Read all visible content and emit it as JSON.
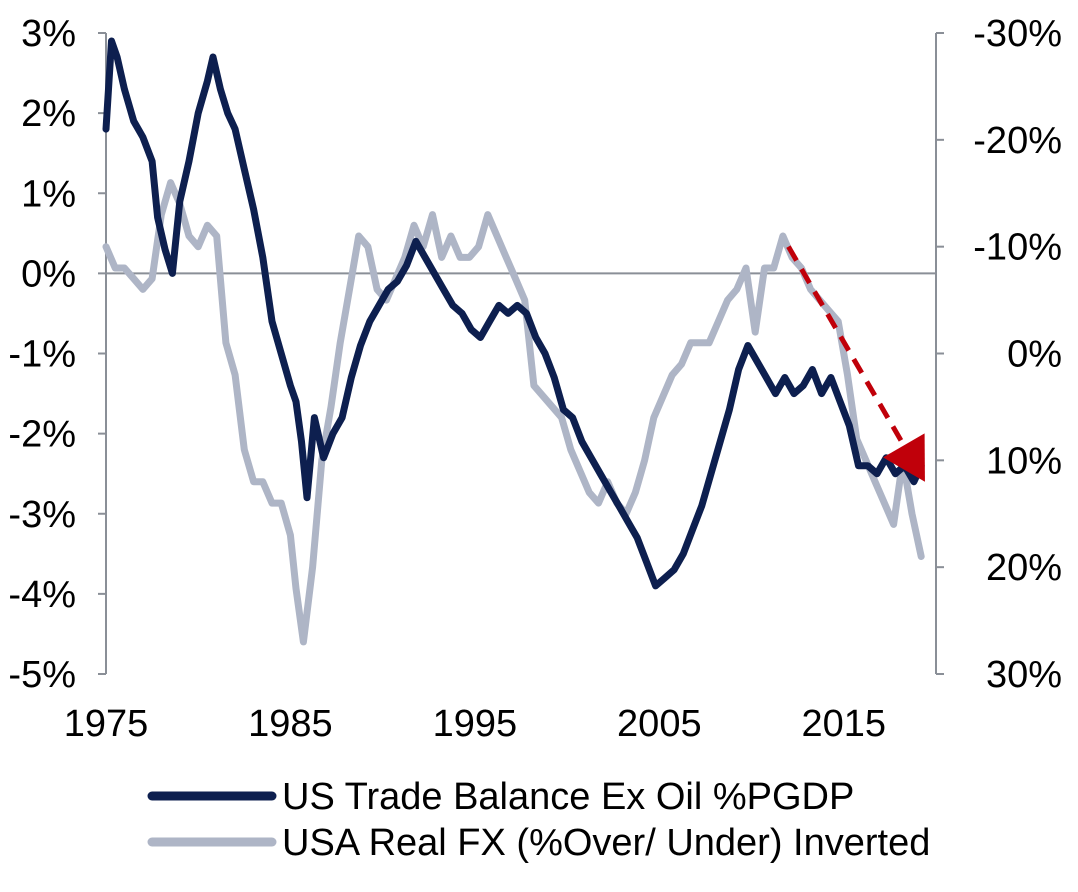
{
  "chart_data": {
    "type": "line",
    "title": "",
    "xlabel": "",
    "ylabel": "",
    "x_ticks": [
      "1975",
      "1985",
      "1995",
      "2005",
      "2015"
    ],
    "x_tick_values": [
      1975,
      1985,
      1995,
      2005,
      2015
    ],
    "xlim": [
      1975,
      2020
    ],
    "ylim_left": [
      -5,
      3
    ],
    "ylim_right": [
      30,
      -30
    ],
    "left_ticks": [
      {
        "value": 3,
        "label": "3%"
      },
      {
        "value": 2,
        "label": "2%"
      },
      {
        "value": 1,
        "label": "1%"
      },
      {
        "value": 0,
        "label": "0%"
      },
      {
        "value": -1,
        "label": "-1%"
      },
      {
        "value": -2,
        "label": "-2%"
      },
      {
        "value": -3,
        "label": "-3%"
      },
      {
        "value": -4,
        "label": "-4%"
      },
      {
        "value": -5,
        "label": "-5%"
      }
    ],
    "right_ticks": [
      {
        "value": -30,
        "label": "-30%"
      },
      {
        "value": -20,
        "label": "-20%"
      },
      {
        "value": -10,
        "label": "-10%"
      },
      {
        "value": 0,
        "label": "0%"
      },
      {
        "value": 10,
        "label": "10%"
      },
      {
        "value": 20,
        "label": "20%"
      },
      {
        "value": 30,
        "label": "30%"
      }
    ],
    "grid": false,
    "legend_position": "bottom",
    "series": [
      {
        "name": "US Trade Balance Ex Oil %PGDP",
        "axis": "left",
        "color": "#0d1f4f",
        "x": [
          1975.0,
          1975.3,
          1975.6,
          1976.0,
          1976.5,
          1977.0,
          1977.5,
          1977.8,
          1978.2,
          1978.6,
          1979.0,
          1979.5,
          1980.0,
          1980.5,
          1980.8,
          1981.2,
          1981.6,
          1982.0,
          1982.5,
          1983.0,
          1983.5,
          1984.0,
          1984.5,
          1985.0,
          1985.3,
          1985.6,
          1985.9,
          1986.3,
          1986.8,
          1987.3,
          1987.8,
          1988.3,
          1988.8,
          1989.3,
          1989.8,
          1990.3,
          1990.8,
          1991.3,
          1991.8,
          1992.3,
          1992.8,
          1993.3,
          1993.8,
          1994.3,
          1994.8,
          1995.3,
          1995.8,
          1996.3,
          1996.8,
          1997.3,
          1997.8,
          1998.3,
          1998.8,
          1999.3,
          1999.8,
          2000.3,
          2000.8,
          2001.3,
          2001.8,
          2002.3,
          2002.8,
          2003.3,
          2003.8,
          2004.3,
          2004.8,
          2005.3,
          2005.8,
          2006.3,
          2006.8,
          2007.3,
          2007.8,
          2008.3,
          2008.8,
          2009.3,
          2009.8,
          2010.3,
          2010.8,
          2011.3,
          2011.8,
          2012.3,
          2012.8,
          2013.3,
          2013.8,
          2014.3,
          2014.8,
          2015.3,
          2015.8,
          2016.3,
          2016.8,
          2017.3,
          2017.8,
          2018.3,
          2018.8,
          2019.2
        ],
        "values": [
          1.8,
          2.9,
          2.7,
          2.3,
          1.9,
          1.7,
          1.4,
          0.7,
          0.3,
          0.0,
          0.9,
          1.4,
          2.0,
          2.4,
          2.7,
          2.3,
          2.0,
          1.8,
          1.3,
          0.8,
          0.2,
          -0.6,
          -1.0,
          -1.4,
          -1.6,
          -2.1,
          -2.8,
          -1.8,
          -2.3,
          -2.0,
          -1.8,
          -1.3,
          -0.9,
          -0.6,
          -0.4,
          -0.2,
          -0.1,
          0.1,
          0.4,
          0.2,
          0.0,
          -0.2,
          -0.4,
          -0.5,
          -0.7,
          -0.8,
          -0.6,
          -0.4,
          -0.5,
          -0.4,
          -0.5,
          -0.8,
          -1.0,
          -1.3,
          -1.7,
          -1.8,
          -2.1,
          -2.3,
          -2.5,
          -2.7,
          -2.9,
          -3.1,
          -3.3,
          -3.6,
          -3.9,
          -3.8,
          -3.7,
          -3.5,
          -3.2,
          -2.9,
          -2.5,
          -2.1,
          -1.7,
          -1.2,
          -0.9,
          -1.1,
          -1.3,
          -1.5,
          -1.3,
          -1.5,
          -1.4,
          -1.2,
          -1.5,
          -1.3,
          -1.6,
          -1.9,
          -2.4,
          -2.4,
          -2.5,
          -2.3,
          -2.5,
          -2.4,
          -2.6,
          -2.4
        ]
      },
      {
        "name": "USA Real FX (%Over/ Under) Inverted",
        "axis": "right",
        "color": "#aeb5c6",
        "x": [
          1975.0,
          1975.5,
          1976.0,
          1976.5,
          1977.0,
          1977.5,
          1978.0,
          1978.5,
          1979.0,
          1979.5,
          1980.0,
          1980.5,
          1981.0,
          1981.5,
          1982.0,
          1982.5,
          1983.0,
          1983.5,
          1984.0,
          1984.5,
          1985.0,
          1985.3,
          1985.7,
          1986.2,
          1986.7,
          1987.2,
          1987.7,
          1988.2,
          1988.7,
          1989.2,
          1989.7,
          1990.2,
          1990.7,
          1991.2,
          1991.7,
          1992.2,
          1992.7,
          1993.2,
          1993.7,
          1994.2,
          1994.7,
          1995.2,
          1995.7,
          1996.2,
          1996.7,
          1997.2,
          1997.7,
          1998.2,
          1998.7,
          1999.2,
          1999.7,
          2000.2,
          2000.7,
          2001.2,
          2001.7,
          2002.2,
          2002.7,
          2003.2,
          2003.7,
          2004.2,
          2004.7,
          2005.2,
          2005.7,
          2006.2,
          2006.7,
          2007.2,
          2007.7,
          2008.2,
          2008.7,
          2009.2,
          2009.7,
          2010.2,
          2010.7,
          2011.2,
          2011.7,
          2012.2,
          2012.7,
          2013.2,
          2013.7,
          2014.2,
          2014.7,
          2015.2,
          2015.7,
          2016.2,
          2016.7,
          2017.2,
          2017.7,
          2018.2,
          2018.7,
          2019.2
        ],
        "values": [
          -10,
          -8,
          -8,
          -7,
          -6,
          -7,
          -13,
          -16,
          -14,
          -11,
          -10,
          -12,
          -11,
          -1,
          2,
          9,
          12,
          12,
          14,
          14,
          17,
          22,
          27,
          20,
          10,
          5,
          -1,
          -6,
          -11,
          -10,
          -6,
          -5,
          -7,
          -9,
          -12,
          -10,
          -13,
          -9,
          -11,
          -9,
          -9,
          -10,
          -13,
          -11,
          -9,
          -7,
          -5,
          3,
          4,
          5,
          6,
          9,
          11,
          13,
          14,
          12,
          14,
          15,
          13,
          10,
          6,
          4,
          2,
          1,
          -1,
          -1,
          -1,
          -3,
          -5,
          -6,
          -8,
          -2,
          -8,
          -8,
          -11,
          -9,
          -8,
          -6,
          -5,
          -4,
          -3,
          2,
          8,
          10,
          12,
          14,
          16,
          10,
          15,
          19
        ]
      }
    ],
    "annotation": {
      "type": "dashed-arrow",
      "color": "#c0000a",
      "from": {
        "x": 2012.0,
        "y_right": -10
      },
      "to": {
        "x": 2019.4,
        "y_right": 12
      }
    }
  }
}
